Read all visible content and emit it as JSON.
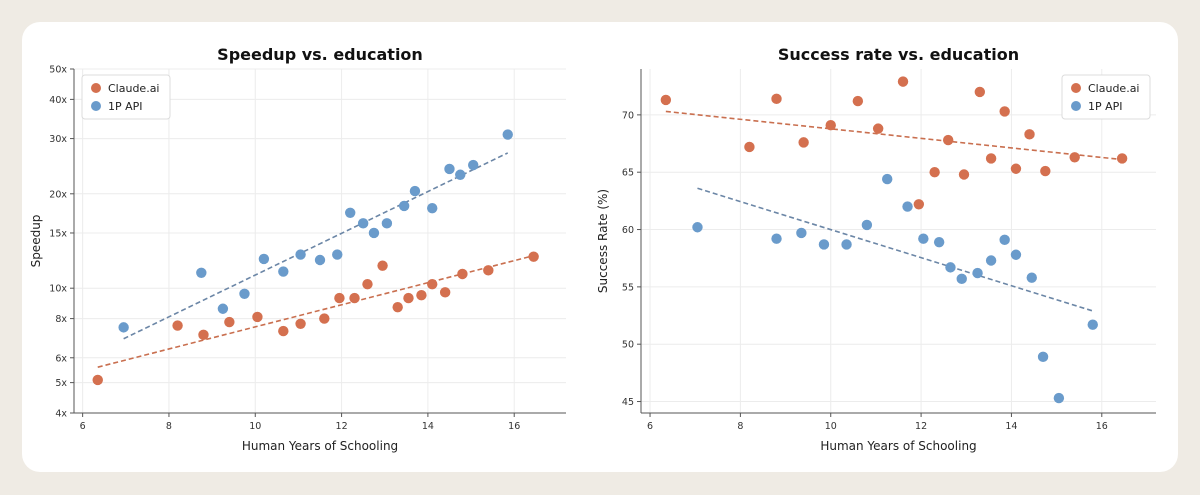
{
  "colors": {
    "claude": "#d4704f",
    "api": "#6a9bcb",
    "claude_trend": "#c96f4f",
    "api_trend": "#6b86a6"
  },
  "chart_data": [
    {
      "type": "scatter",
      "title": "Speedup vs. education",
      "xlabel": "Human Years of Schooling",
      "ylabel": "Speedup",
      "xlim": [
        5.8,
        17.2
      ],
      "ylim": [
        4,
        50
      ],
      "yscale": "log",
      "xticks": [
        6,
        8,
        10,
        12,
        14,
        16
      ],
      "yticks": [
        {
          "v": 4,
          "label": "4x"
        },
        {
          "v": 5,
          "label": "5x"
        },
        {
          "v": 6,
          "label": "6x"
        },
        {
          "v": 8,
          "label": "8x"
        },
        {
          "v": 10,
          "label": "10x"
        },
        {
          "v": 15,
          "label": "15x"
        },
        {
          "v": 20,
          "label": "20x"
        },
        {
          "v": 30,
          "label": "30x"
        },
        {
          "v": 40,
          "label": "40x"
        },
        {
          "v": 50,
          "label": "50x"
        }
      ],
      "legend": "top-left",
      "grid": true,
      "series": [
        {
          "name": "Claude.ai",
          "color_key": "claude",
          "x": [
            6.35,
            8.2,
            8.8,
            9.4,
            10.05,
            10.65,
            11.05,
            11.6,
            11.95,
            12.3,
            12.6,
            12.95,
            13.3,
            13.55,
            13.85,
            14.1,
            14.4,
            14.8,
            15.4,
            16.45
          ],
          "y": [
            5.1,
            7.6,
            7.1,
            7.8,
            8.1,
            7.3,
            7.7,
            8.0,
            9.3,
            9.3,
            10.3,
            11.8,
            8.7,
            9.3,
            9.5,
            10.3,
            9.7,
            11.1,
            11.4,
            12.6
          ],
          "trend": {
            "x": [
              6.35,
              16.45
            ],
            "y": [
              5.6,
              12.7
            ]
          }
        },
        {
          "name": "1P API",
          "color_key": "api",
          "x": [
            6.95,
            8.75,
            9.25,
            9.75,
            10.2,
            10.65,
            11.05,
            11.5,
            11.9,
            12.2,
            12.5,
            12.75,
            13.05,
            13.45,
            13.7,
            14.1,
            14.5,
            14.75,
            15.05,
            15.85
          ],
          "y": [
            7.5,
            11.2,
            8.6,
            9.6,
            12.4,
            11.3,
            12.8,
            12.3,
            12.8,
            17.4,
            16.1,
            15.0,
            16.1,
            18.3,
            20.4,
            18.0,
            24.0,
            23.0,
            24.7,
            30.9
          ],
          "trend": {
            "x": [
              6.95,
              15.85
            ],
            "y": [
              6.9,
              27.0
            ]
          }
        }
      ]
    },
    {
      "type": "scatter",
      "title": "Success rate vs. education",
      "xlabel": "Human Years of Schooling",
      "ylabel": "Success Rate (%)",
      "xlim": [
        5.8,
        17.2
      ],
      "ylim": [
        44,
        74
      ],
      "xticks": [
        6,
        8,
        10,
        12,
        14,
        16
      ],
      "yticks": [
        {
          "v": 45,
          "label": "45"
        },
        {
          "v": 50,
          "label": "50"
        },
        {
          "v": 55,
          "label": "55"
        },
        {
          "v": 60,
          "label": "60"
        },
        {
          "v": 65,
          "label": "65"
        },
        {
          "v": 70,
          "label": "70"
        }
      ],
      "legend": "top-right",
      "grid": true,
      "series": [
        {
          "name": "Claude.ai",
          "color_key": "claude",
          "x": [
            6.35,
            8.2,
            8.8,
            9.4,
            10.0,
            10.6,
            11.05,
            11.6,
            11.95,
            12.3,
            12.6,
            12.95,
            13.3,
            13.55,
            13.85,
            14.1,
            14.4,
            14.75,
            15.4,
            16.45
          ],
          "y": [
            71.3,
            67.2,
            71.4,
            67.6,
            69.1,
            71.2,
            68.8,
            72.9,
            62.2,
            65.0,
            67.8,
            64.8,
            72.0,
            66.2,
            70.3,
            65.3,
            68.3,
            65.1,
            66.3,
            66.2
          ],
          "trend": {
            "x": [
              6.35,
              16.45
            ],
            "y": [
              70.3,
              66.1
            ]
          }
        },
        {
          "name": "1P API",
          "color_key": "api",
          "x": [
            7.05,
            8.8,
            9.35,
            9.85,
            10.35,
            10.8,
            11.25,
            11.7,
            12.05,
            12.4,
            12.65,
            12.9,
            13.25,
            13.55,
            13.85,
            14.1,
            14.45,
            14.7,
            15.05,
            15.8
          ],
          "y": [
            60.2,
            59.2,
            59.7,
            58.7,
            58.7,
            60.4,
            64.4,
            62.0,
            59.2,
            58.9,
            56.7,
            55.7,
            56.2,
            57.3,
            59.1,
            57.8,
            55.8,
            48.9,
            45.3,
            51.7
          ],
          "trend": {
            "x": [
              7.05,
              15.8
            ],
            "y": [
              63.6,
              52.9
            ]
          }
        }
      ]
    }
  ]
}
